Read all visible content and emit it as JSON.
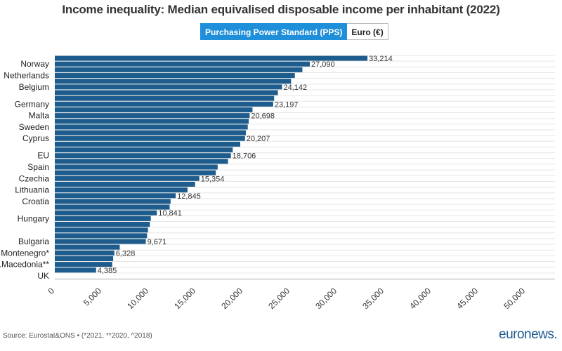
{
  "header": {
    "title": "Income inequality: Median equivalised disposable income per inhabitant (2022)"
  },
  "toggle": {
    "pps_label": "Purchasing Power Standard (PPS)",
    "euro_label": "Euro (€)",
    "selected": "pps"
  },
  "footer": {
    "source": "Source: Eurostat&ONS • (*2021, **2020, ^2018)",
    "logo_a": "euro",
    "logo_b": "news",
    "logo_c": "."
  },
  "colors": {
    "bar": "#1d5c8c",
    "grid": "#e6e6e6",
    "accent": "#1f8fd9"
  },
  "chart_data": {
    "type": "bar",
    "orientation": "horizontal",
    "title": "Income inequality: Median equivalised disposable income per inhabitant (2022)",
    "xlabel": "",
    "ylabel": "",
    "xlim": [
      0,
      50000
    ],
    "x_ticks": [
      "0",
      "5,000",
      "10,000",
      "15,000",
      "20,000",
      "25,000",
      "30,000",
      "35,000",
      "40,000",
      "45,000",
      "50,000"
    ],
    "bars": [
      {
        "category": "",
        "value": 33214,
        "label": "33,214"
      },
      {
        "category": "Norway",
        "value": 27090,
        "label": "27,090"
      },
      {
        "category": "",
        "value": 26300,
        "label": ""
      },
      {
        "category": "Netherlands",
        "value": 25500,
        "label": ""
      },
      {
        "category": "",
        "value": 25100,
        "label": ""
      },
      {
        "category": "Belgium",
        "value": 24142,
        "label": "24,142"
      },
      {
        "category": "",
        "value": 23700,
        "label": ""
      },
      {
        "category": "",
        "value": 23300,
        "label": ""
      },
      {
        "category": "Germany",
        "value": 23197,
        "label": "23,197"
      },
      {
        "category": "",
        "value": 21000,
        "label": ""
      },
      {
        "category": "Malta",
        "value": 20698,
        "label": "20,698"
      },
      {
        "category": "",
        "value": 20600,
        "label": ""
      },
      {
        "category": "Sweden",
        "value": 20500,
        "label": ""
      },
      {
        "category": "",
        "value": 20300,
        "label": ""
      },
      {
        "category": "Cyprus",
        "value": 20207,
        "label": "20,207"
      },
      {
        "category": "",
        "value": 19700,
        "label": ""
      },
      {
        "category": "",
        "value": 18900,
        "label": ""
      },
      {
        "category": "EU",
        "value": 18706,
        "label": "18,706"
      },
      {
        "category": "",
        "value": 18400,
        "label": ""
      },
      {
        "category": "Spain",
        "value": 17300,
        "label": ""
      },
      {
        "category": "",
        "value": 17100,
        "label": ""
      },
      {
        "category": "Czechia",
        "value": 15354,
        "label": "15,354"
      },
      {
        "category": "",
        "value": 14900,
        "label": ""
      },
      {
        "category": "Lithuania",
        "value": 14100,
        "label": ""
      },
      {
        "category": "",
        "value": 12845,
        "label": "12,845"
      },
      {
        "category": "Croatia",
        "value": 12300,
        "label": ""
      },
      {
        "category": "",
        "value": 12200,
        "label": ""
      },
      {
        "category": "",
        "value": 10841,
        "label": "10,841"
      },
      {
        "category": "Hungary",
        "value": 10200,
        "label": ""
      },
      {
        "category": "",
        "value": 10100,
        "label": ""
      },
      {
        "category": "",
        "value": 9900,
        "label": ""
      },
      {
        "category": "",
        "value": 9800,
        "label": ""
      },
      {
        "category": "Bulgaria",
        "value": 9671,
        "label": "9,671"
      },
      {
        "category": "",
        "value": 6900,
        "label": ""
      },
      {
        "category": "Montenegro*",
        "value": 6328,
        "label": "6,328"
      },
      {
        "category": "",
        "value": 6200,
        "label": ""
      },
      {
        "category": "N.Macedonia**",
        "value": 6100,
        "label": ""
      },
      {
        "category": "",
        "value": 4385,
        "label": "4,385"
      },
      {
        "category": "UK",
        "value": 0,
        "label": ""
      }
    ]
  }
}
